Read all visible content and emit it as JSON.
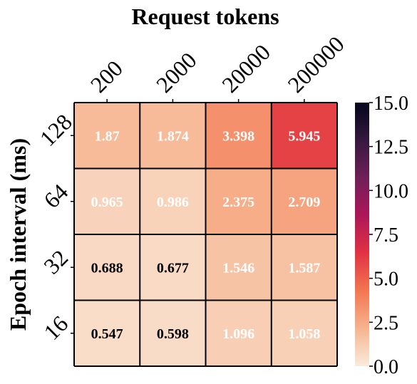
{
  "chart_data": {
    "type": "heatmap",
    "title": "Request tokens",
    "xlabel": "",
    "ylabel": "Epoch interval (ms)",
    "x_categories": [
      "200",
      "2000",
      "20000",
      "200000"
    ],
    "y_categories": [
      "128",
      "64",
      "32",
      "16"
    ],
    "values": [
      [
        1.87,
        1.874,
        3.398,
        5.945
      ],
      [
        0.965,
        0.986,
        2.375,
        2.709
      ],
      [
        0.688,
        0.677,
        1.546,
        1.587
      ],
      [
        0.547,
        0.598,
        1.096,
        1.058
      ]
    ],
    "cell_labels": [
      [
        "1.87",
        "1.874",
        "3.398",
        "5.945"
      ],
      [
        "0.965",
        "0.986",
        "2.375",
        "2.709"
      ],
      [
        "0.688",
        "0.677",
        "1.546",
        "1.587"
      ],
      [
        "0.547",
        "0.598",
        "1.096",
        "1.058"
      ]
    ],
    "colorbar": {
      "range": [
        0,
        15
      ],
      "ticks": [
        "0.0",
        "2.5",
        "5.0",
        "7.5",
        "10.0",
        "12.5",
        "15.0"
      ],
      "colormap": "rocket_r",
      "stops": [
        "#faebdd",
        "#f6b48f",
        "#f37651",
        "#e13342",
        "#ad1759",
        "#701f57",
        "#35193e",
        "#03051a"
      ]
    },
    "x_axis_position": "top",
    "grid": false
  }
}
